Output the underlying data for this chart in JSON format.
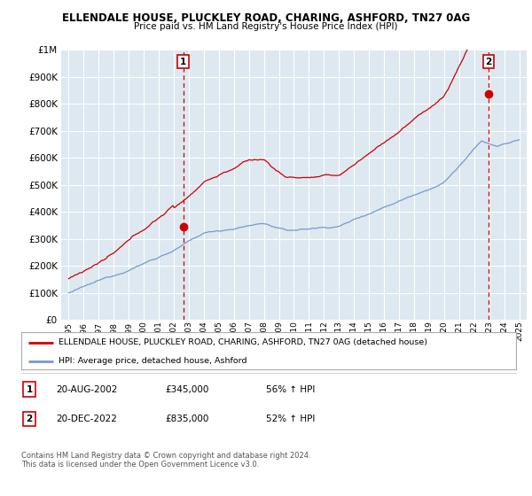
{
  "title": "ELLENDALE HOUSE, PLUCKLEY ROAD, CHARING, ASHFORD, TN27 0AG",
  "subtitle": "Price paid vs. HM Land Registry's House Price Index (HPI)",
  "ytick_vals": [
    0,
    100000,
    200000,
    300000,
    400000,
    500000,
    600000,
    700000,
    800000,
    900000,
    1000000
  ],
  "ylim": [
    0,
    1000000
  ],
  "red_line_color": "#cc0000",
  "blue_line_color": "#7799cc",
  "vline_color": "#cc0000",
  "bg_color": "#ffffff",
  "chart_bg_color": "#dde8f0",
  "grid_color": "#ffffff",
  "purchase1_x": 2002.63,
  "purchase1_y": 345000,
  "purchase2_x": 2022.96,
  "purchase2_y": 835000,
  "legend_red_label": "ELLENDALE HOUSE, PLUCKLEY ROAD, CHARING, ASHFORD, TN27 0AG (detached house)",
  "legend_blue_label": "HPI: Average price, detached house, Ashford",
  "table_row1": [
    "1",
    "20-AUG-2002",
    "£345,000",
    "56% ↑ HPI"
  ],
  "table_row2": [
    "2",
    "20-DEC-2022",
    "£835,000",
    "52% ↑ HPI"
  ],
  "footer": "Contains HM Land Registry data © Crown copyright and database right 2024.\nThis data is licensed under the Open Government Licence v3.0.",
  "xtick_years": [
    1995,
    1996,
    1997,
    1998,
    1999,
    2000,
    2001,
    2002,
    2003,
    2004,
    2005,
    2006,
    2007,
    2008,
    2009,
    2010,
    2011,
    2012,
    2013,
    2014,
    2015,
    2016,
    2017,
    2018,
    2019,
    2020,
    2021,
    2022,
    2023,
    2024,
    2025
  ],
  "xlim_start": 1994.5,
  "xlim_end": 2025.5
}
